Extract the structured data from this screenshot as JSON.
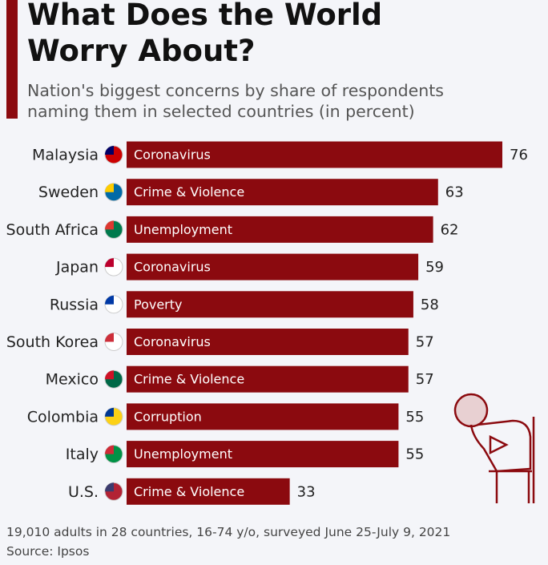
{
  "chart_data": {
    "type": "bar",
    "orientation": "horizontal",
    "title": "What Does the World Worry About?",
    "subtitle": "Nation's biggest concerns by share of respondents naming them in selected countries (in percent)",
    "categories": [
      "Malaysia",
      "Sweden",
      "South Africa",
      "Japan",
      "Russia",
      "South Korea",
      "Mexico",
      "Colombia",
      "Italy",
      "U.S."
    ],
    "bar_labels": [
      "Coronavirus",
      "Crime & Violence",
      "Unemployment",
      "Coronavirus",
      "Poverty",
      "Coronavirus",
      "Crime & Violence",
      "Corruption",
      "Unemployment",
      "Crime & Violence"
    ],
    "values": [
      76,
      63,
      62,
      59,
      58,
      57,
      57,
      55,
      55,
      33
    ],
    "color": "#8b0a0f",
    "note": "19,010 adults in 28 countries, 16-74 y/o, surveyed June 25-July 9, 2021",
    "source": "Source: Ipsos"
  }
}
